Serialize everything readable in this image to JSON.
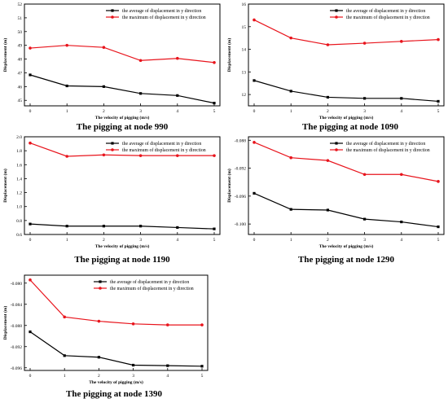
{
  "chart_data": [
    {
      "type": "line",
      "title": "The pigging at node 990",
      "xlabel": "The velocity of pigging (m/s)",
      "ylabel": "Displacement (m)",
      "x": [
        0,
        1,
        2,
        3,
        4,
        5
      ],
      "xticks": [
        "0",
        "1",
        "2",
        "3",
        "4",
        "5"
      ],
      "ylim": [
        44.6,
        52
      ],
      "yticks": [
        45,
        46,
        47,
        48,
        49,
        50,
        51,
        52
      ],
      "ytick_labels": [
        "45",
        "46",
        "47",
        "48",
        "49",
        "50",
        "51",
        "52"
      ],
      "legend": "top-right",
      "grid": false,
      "series": [
        {
          "name": "the average of displacement in y direction",
          "color": "#000000",
          "values": [
            46.85,
            46.05,
            46.0,
            45.5,
            45.35,
            44.8
          ]
        },
        {
          "name": "the maximum of displacement in y direction",
          "color": "#e8141c",
          "values": [
            48.8,
            49.0,
            48.85,
            47.9,
            48.05,
            47.75
          ]
        }
      ]
    },
    {
      "type": "line",
      "title": "The pigging at node 1090",
      "xlabel": "The velocity of pigging (m/s)",
      "ylabel": "Displacement (m)",
      "x": [
        0,
        1,
        2,
        3,
        4,
        5
      ],
      "xticks": [
        "0",
        "1",
        "2",
        "3",
        "4",
        "5"
      ],
      "ylim": [
        11.5,
        16
      ],
      "yticks": [
        12,
        13,
        14,
        15,
        16
      ],
      "ytick_labels": [
        "12",
        "13",
        "14",
        "15",
        "16"
      ],
      "legend": "top-right",
      "grid": false,
      "series": [
        {
          "name": "the average of displacement in y direction",
          "color": "#000000",
          "values": [
            12.62,
            12.15,
            11.88,
            11.83,
            11.83,
            11.7
          ]
        },
        {
          "name": "the maximum of displacement in y direction",
          "color": "#e8141c",
          "values": [
            15.3,
            14.5,
            14.2,
            14.27,
            14.35,
            14.43
          ]
        }
      ]
    },
    {
      "type": "line",
      "title": "The pigging at node 1190",
      "xlabel": "The velocity of pigging (m/s)",
      "ylabel": "Displacement (m)",
      "x": [
        0,
        1,
        2,
        3,
        4,
        5
      ],
      "xticks": [
        "0",
        "1",
        "2",
        "3",
        "4",
        "5"
      ],
      "ylim": [
        0.6,
        2.0
      ],
      "yticks": [
        0.6,
        0.8,
        1.0,
        1.2,
        1.4,
        1.6,
        1.8,
        2.0
      ],
      "ytick_labels": [
        "0.6",
        "0.8",
        "1.0",
        "1.2",
        "1.4",
        "1.6",
        "1.8",
        "2.0"
      ],
      "legend": "top-right",
      "grid": false,
      "series": [
        {
          "name": "the average of displacement in y direction",
          "color": "#000000",
          "values": [
            0.75,
            0.72,
            0.72,
            0.72,
            0.7,
            0.68
          ]
        },
        {
          "name": "the maximum of displacement in y direction",
          "color": "#e8141c",
          "values": [
            1.91,
            1.72,
            1.74,
            1.73,
            1.73,
            1.73
          ]
        }
      ]
    },
    {
      "type": "line",
      "title": "The pigging at node 1290",
      "xlabel": "The velocity of pigging (m/s)",
      "ylabel": "Displacement (m)",
      "x": [
        0,
        1,
        2,
        3,
        4,
        5
      ],
      "xticks": [
        "0",
        "1",
        "2",
        "3",
        "4",
        "5"
      ],
      "ylim": [
        -0.1015,
        -0.0875
      ],
      "yticks": [
        -0.1,
        -0.096,
        -0.092,
        -0.088
      ],
      "ytick_labels": [
        "-0.100",
        "-0.096",
        "-0.092",
        "-0.088"
      ],
      "legend": "top-right",
      "grid": false,
      "series": [
        {
          "name": "the average of displacement in y direction",
          "color": "#000000",
          "values": [
            -0.0956,
            -0.0979,
            -0.098,
            -0.0993,
            -0.0997,
            -0.1004
          ]
        },
        {
          "name": "the maximum of displacement in y direction",
          "color": "#e8141c",
          "values": [
            -0.0883,
            -0.0905,
            -0.0909,
            -0.0929,
            -0.0929,
            -0.0939
          ]
        }
      ]
    },
    {
      "type": "line",
      "title": "The pigging at node 1390",
      "xlabel": "The velocity of pigging (m/s)",
      "ylabel": "Displacement (m)",
      "x": [
        0,
        1,
        2,
        3,
        4,
        5
      ],
      "xticks": [
        "0",
        "1",
        "2",
        "3",
        "4",
        "5"
      ],
      "ylim": [
        -0.0965,
        -0.0785
      ],
      "yticks": [
        -0.096,
        -0.092,
        -0.088,
        -0.084,
        -0.08
      ],
      "ytick_labels": [
        "-0.096",
        "-0.092",
        "-0.088",
        "-0.084",
        "-0.080"
      ],
      "legend": "top-right",
      "grid": false,
      "series": [
        {
          "name": "the average of displacement in y direction",
          "color": "#000000",
          "values": [
            -0.0892,
            -0.0937,
            -0.094,
            -0.0955,
            -0.0956,
            -0.0957
          ]
        },
        {
          "name": "the maximum of displacement in y direction",
          "color": "#e8141c",
          "values": [
            -0.0794,
            -0.0864,
            -0.0872,
            -0.0877,
            -0.0879,
            -0.0879
          ]
        }
      ]
    }
  ]
}
